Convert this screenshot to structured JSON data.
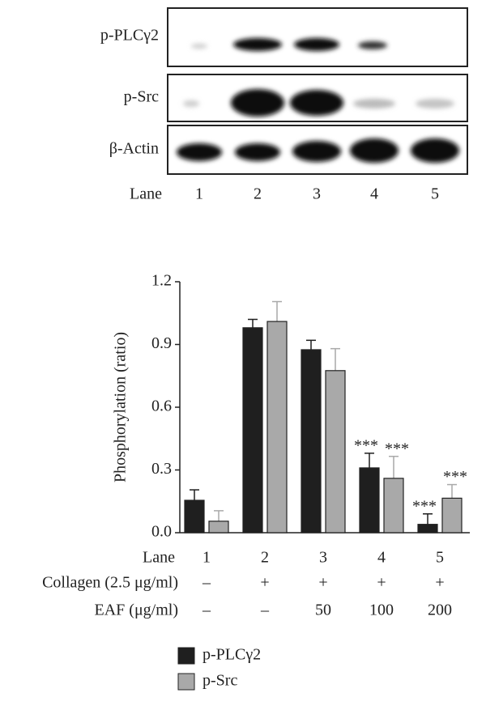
{
  "blot": {
    "rows": [
      "p-PLCγ2",
      "p-Src",
      "β-Actin"
    ],
    "lane_label": "Lane",
    "lanes": [
      "1",
      "2",
      "3",
      "4",
      "5"
    ]
  },
  "chart_data": {
    "type": "bar",
    "ylabel": "Phosphorylation (ratio)",
    "xlabel": "Lane",
    "categories": [
      "1",
      "2",
      "3",
      "4",
      "5"
    ],
    "series": [
      {
        "name": "p-PLCγ2",
        "color": "#1f1f1f",
        "values": [
          0.155,
          0.98,
          0.875,
          0.31,
          0.04
        ],
        "errors": [
          0.05,
          0.04,
          0.045,
          0.07,
          0.05
        ],
        "annotations": [
          null,
          null,
          null,
          "***",
          "***"
        ]
      },
      {
        "name": "p-Src",
        "color": "#a9a9a9",
        "values": [
          0.055,
          1.01,
          0.775,
          0.26,
          0.165
        ],
        "errors": [
          0.05,
          0.095,
          0.105,
          0.105,
          0.065
        ],
        "annotations": [
          null,
          null,
          null,
          "***",
          "***"
        ]
      }
    ],
    "treatments": [
      {
        "label": "Collagen (2.5 μg/ml)",
        "values": [
          "–",
          "+",
          "+",
          "+",
          "+"
        ]
      },
      {
        "label": "EAF (μg/ml)",
        "values": [
          "–",
          "–",
          "50",
          "100",
          "200"
        ]
      }
    ],
    "ylim": [
      0,
      1.2
    ],
    "yticks": [
      {
        "value": 0,
        "label": "0.0"
      },
      0.3,
      0.6,
      0.9,
      1.2
    ]
  }
}
